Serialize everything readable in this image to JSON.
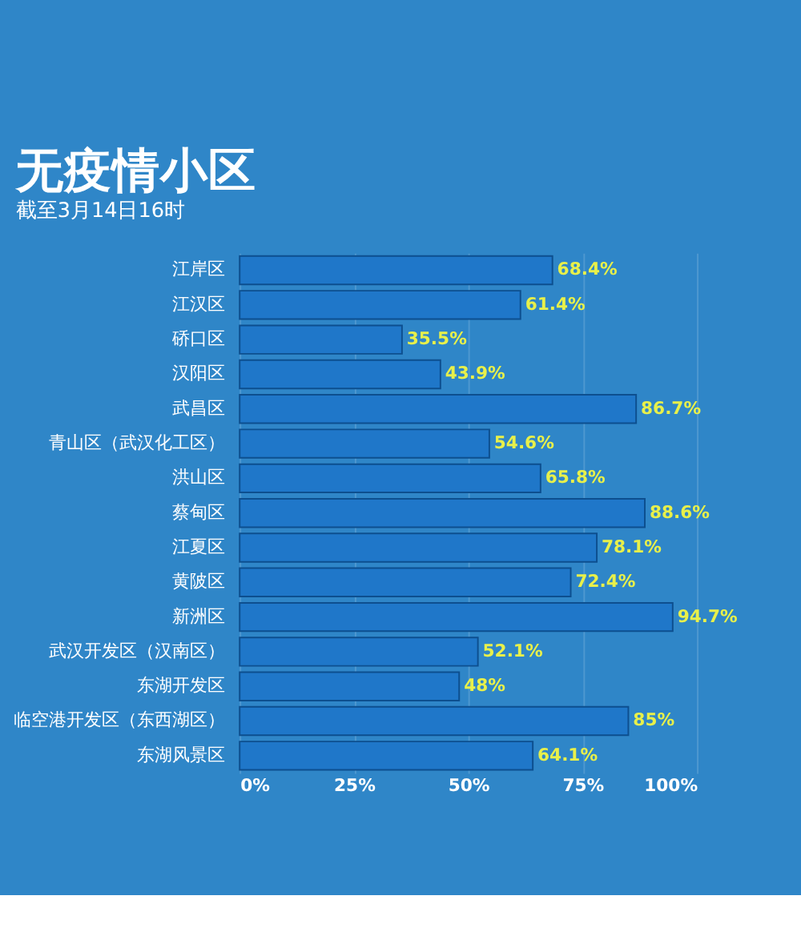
{
  "chart_data": {
    "type": "bar",
    "orientation": "horizontal",
    "title": "无疫情小区",
    "subtitle": "截至3月14日16时",
    "categories": [
      "江岸区",
      "江汉区",
      "硚口区",
      "汉阳区",
      "武昌区",
      "青山区（武汉化工区）",
      "洪山区",
      "蔡甸区",
      "江夏区",
      "黄陂区",
      "新洲区",
      "武汉开发区（汉南区）",
      "东湖开发区",
      "临空港开发区（东西湖区）",
      "东湖风景区"
    ],
    "values": [
      68.4,
      61.4,
      35.5,
      43.9,
      86.7,
      54.6,
      65.8,
      88.6,
      78.1,
      72.4,
      94.7,
      52.1,
      48,
      85,
      64.1
    ],
    "color": "#1f77c9",
    "value_labels": [
      "68.4%",
      "61.4%",
      "35.5%",
      "43.9%",
      "86.7%",
      "54.6%",
      "65.8%",
      "88.6%",
      "78.1%",
      "72.4%",
      "94.7%",
      "52.1%",
      "48%",
      "85%",
      "64.1%"
    ],
    "xlim": [
      0,
      100
    ],
    "xticks": [
      {
        "value": 0,
        "label": "0%"
      },
      {
        "value": 25,
        "label": "25%"
      },
      {
        "value": 50,
        "label": "50%"
      },
      {
        "value": 75,
        "label": "75%"
      },
      {
        "value": 100,
        "label": "100%"
      }
    ],
    "grid": "x"
  }
}
